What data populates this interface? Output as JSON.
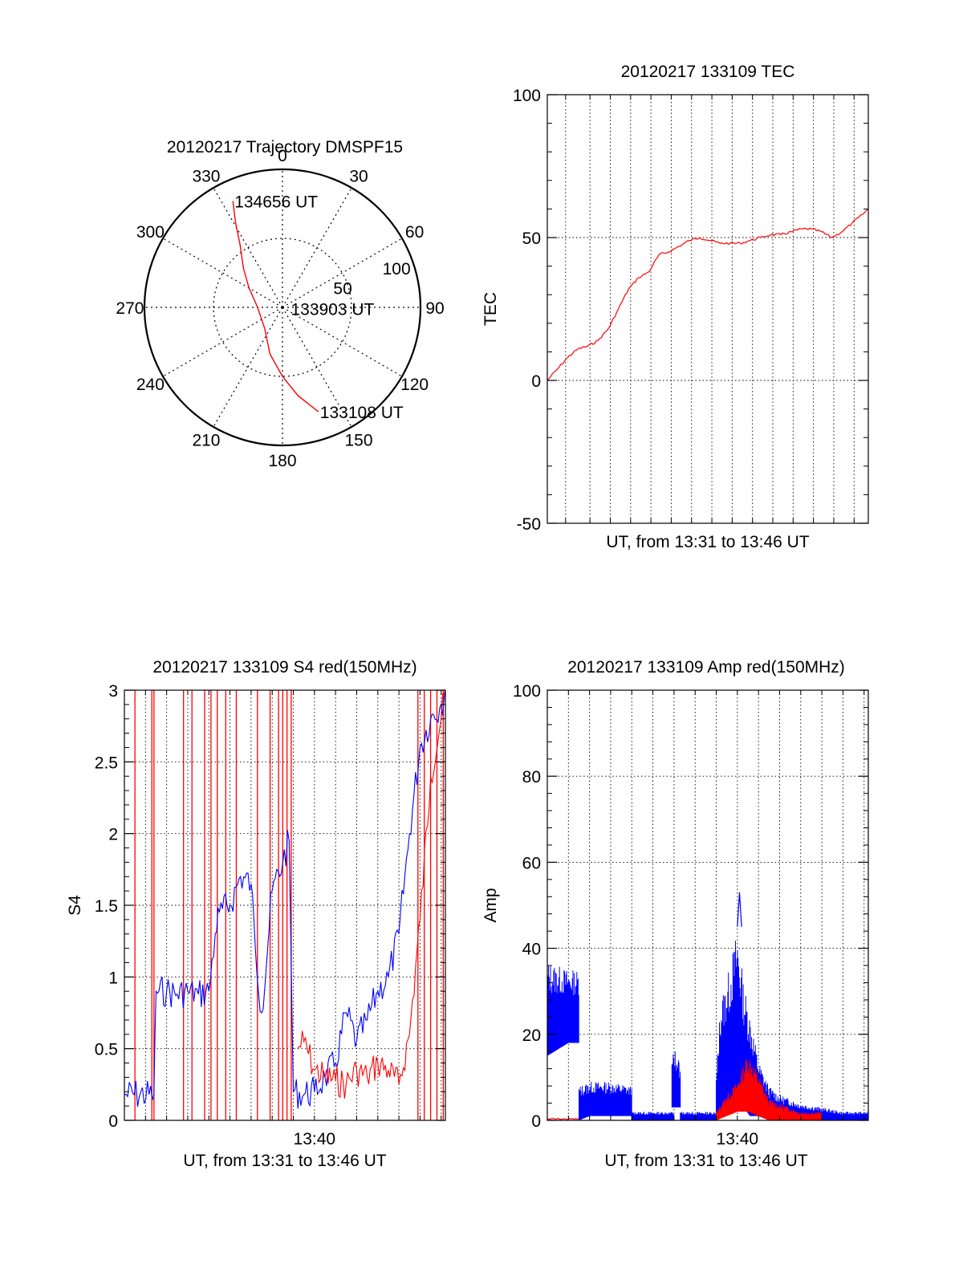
{
  "colors": {
    "red": "#ff0000",
    "blue": "#0000ff",
    "axis": "#000000",
    "grid": "#000000"
  },
  "chart_data": [
    {
      "id": "trajectory",
      "type": "polar",
      "title": "20120217 Trajectory DMSPF15",
      "angle_ticks": [
        0,
        30,
        60,
        90,
        120,
        150,
        180,
        210,
        240,
        270,
        300,
        330
      ],
      "angle_tick_labels": [
        "0",
        "30",
        "60",
        "90",
        "120",
        "150",
        "180",
        "210",
        "240",
        "270",
        "300",
        "330"
      ],
      "radial_ticks": [
        50,
        100
      ],
      "radial_tick_labels": [
        "50",
        "100"
      ],
      "rmax": 100,
      "grid": true,
      "series": [
        {
          "color": "red",
          "points": [
            {
              "az": 335,
              "r": 85
            },
            {
              "az": 331,
              "r": 70
            },
            {
              "az": 326,
              "r": 55
            },
            {
              "az": 315,
              "r": 40
            },
            {
              "az": 300,
              "r": 28
            },
            {
              "az": 270,
              "r": 18
            },
            {
              "az": 220,
              "r": 20
            },
            {
              "az": 195,
              "r": 35
            },
            {
              "az": 180,
              "r": 50
            },
            {
              "az": 170,
              "r": 65
            },
            {
              "az": 161,
              "r": 80
            }
          ]
        }
      ],
      "annotations": [
        {
          "text": "134656 UT",
          "az": 335,
          "r": 85
        },
        {
          "text": "133903 UT",
          "az": 100,
          "r": 5
        },
        {
          "text": "133108 UT",
          "az": 161,
          "r": 80
        }
      ]
    },
    {
      "id": "tec",
      "type": "line",
      "title": "20120217 133109 TEC",
      "xlabel": "UT, from 13:31 to 13:46 UT",
      "ylabel": "TEC",
      "xlim": [
        0,
        15.8
      ],
      "ylim": [
        -50,
        100
      ],
      "yticks": [
        -50,
        0,
        50,
        100
      ],
      "ytick_labels": [
        "-50",
        "0",
        "50",
        "100"
      ],
      "xgrid": [
        0.9,
        2.1,
        3.1,
        4.1,
        5.1,
        6.1,
        7.1,
        8.1,
        9.1,
        10.1,
        11.1,
        12.1,
        13.1,
        14.1,
        15.1
      ],
      "grid": true,
      "series": [
        {
          "color": "red",
          "x": [
            0,
            0.5,
            1.0,
            1.5,
            2.0,
            2.5,
            3.0,
            3.5,
            4.0,
            4.5,
            5.0,
            5.5,
            6.0,
            6.5,
            7.0,
            7.5,
            8.0,
            8.5,
            9.0,
            9.5,
            10.0,
            10.5,
            11.0,
            11.5,
            12.0,
            12.5,
            13.0,
            13.5,
            14.0,
            14.5,
            15.0,
            15.5,
            15.8
          ],
          "y": [
            0,
            4,
            8,
            11,
            12,
            14,
            18,
            25,
            32,
            36,
            38,
            44,
            45,
            47,
            49,
            50,
            49,
            48,
            48,
            48,
            49,
            50,
            51,
            51,
            52,
            53,
            53,
            52,
            50,
            52,
            55,
            58,
            60
          ]
        }
      ]
    },
    {
      "id": "s4",
      "type": "line",
      "title": "20120217 133109 S4 red(150MHz)",
      "xlabel": "UT, from 13:31 to 13:46 UT",
      "ylabel": "S4",
      "xlim": [
        0,
        15.2
      ],
      "ylim": [
        0,
        3
      ],
      "yticks": [
        0,
        0.5,
        1,
        1.5,
        2,
        2.5,
        3
      ],
      "ytick_labels": [
        "0",
        "0.5",
        "1",
        "1.5",
        "2",
        "2.5",
        "3"
      ],
      "xticks": [
        9.0
      ],
      "xtick_labels": [
        "13:40"
      ],
      "xgrid": [
        1.0,
        2.0,
        3.0,
        4.0,
        5.0,
        6.0,
        7.0,
        8.0,
        9.0,
        10.0,
        11.0,
        12.0,
        13.0,
        14.0,
        15.0
      ],
      "grid": true,
      "series": [
        {
          "color": "blue",
          "x": [
            0,
            1.4,
            1.5,
            2.0,
            2.5,
            3.0,
            3.5,
            4.0,
            4.3,
            4.5,
            5.0,
            5.5,
            6.0,
            6.2,
            6.5,
            7.0,
            7.5,
            7.8,
            8.0,
            8.5,
            9.0,
            9.5,
            10.0,
            10.5,
            11.0,
            11.5,
            12.0,
            12.5,
            13.0,
            13.5,
            14.0,
            14.5,
            15.0,
            15.2
          ],
          "y": [
            0.18,
            0.18,
            0.9,
            0.9,
            0.88,
            0.9,
            0.88,
            0.9,
            1.3,
            1.45,
            1.5,
            1.7,
            1.65,
            1.2,
            0.75,
            1.6,
            1.8,
            1.95,
            0.2,
            0.18,
            0.2,
            0.3,
            0.4,
            0.75,
            0.55,
            0.7,
            0.9,
            1.0,
            1.3,
            2.0,
            2.6,
            2.8,
            2.9,
            3.0
          ]
        },
        {
          "color": "red",
          "x": [
            8.2,
            8.5,
            9.0,
            9.5,
            10.0,
            10.5,
            11.0,
            11.5,
            12.0,
            12.5,
            13.0,
            13.5,
            14.0,
            14.5,
            15.0,
            15.2
          ],
          "y": [
            0.5,
            0.55,
            0.35,
            0.3,
            0.28,
            0.25,
            0.35,
            0.3,
            0.4,
            0.35,
            0.25,
            0.6,
            1.4,
            2.4,
            2.8,
            3.0
          ]
        }
      ],
      "spikes": {
        "color": "red",
        "x": [
          0.5,
          1.3,
          1.4,
          2.8,
          3.2,
          3.8,
          4.1,
          4.4,
          4.8,
          5.3,
          6.3,
          6.9,
          7.3,
          7.5,
          7.7,
          7.9,
          13.9,
          14.2,
          14.5,
          14.8,
          15.1
        ],
        "top": 3
      }
    },
    {
      "id": "amp",
      "type": "line",
      "title": "20120217 133109 Amp red(150MHz)",
      "xlabel": "UT, from 13:31 to 13:46 UT",
      "ylabel": "Amp",
      "xlim": [
        0,
        15.2
      ],
      "ylim": [
        0,
        100
      ],
      "yticks": [
        0,
        20,
        40,
        60,
        80,
        100
      ],
      "ytick_labels": [
        "0",
        "20",
        "40",
        "60",
        "80",
        "100"
      ],
      "xticks": [
        9.0
      ],
      "xtick_labels": [
        "13:40"
      ],
      "xgrid": [
        1.0,
        2.0,
        3.0,
        4.0,
        5.0,
        6.0,
        7.0,
        8.0,
        9.0,
        10.0,
        11.0,
        12.0,
        13.0,
        14.0,
        15.0
      ],
      "grid": true,
      "bands": [
        {
          "color": "blue",
          "x": [
            0,
            1.0,
            1.5
          ],
          "low": [
            15,
            18,
            18
          ],
          "high": [
            37,
            35,
            35
          ]
        },
        {
          "color": "blue",
          "x": [
            1.5,
            2.0,
            3.0,
            4.0
          ],
          "low": [
            0,
            1,
            1,
            1
          ],
          "high": [
            8,
            9,
            9,
            8
          ]
        },
        {
          "color": "blue",
          "x": [
            4.0,
            5.0,
            6.0
          ],
          "low": [
            0,
            0,
            0
          ],
          "high": [
            2,
            2,
            2
          ]
        },
        {
          "color": "blue",
          "x": [
            5.9,
            6.0,
            6.2,
            6.3
          ],
          "low": [
            3,
            3,
            3,
            3
          ],
          "high": [
            14,
            17,
            15,
            12
          ]
        },
        {
          "color": "blue",
          "x": [
            6.3,
            7.0,
            8.0
          ],
          "low": [
            0,
            0,
            0
          ],
          "high": [
            2,
            2,
            2
          ]
        },
        {
          "color": "blue",
          "x": [
            8.0,
            8.2,
            8.6,
            9.0,
            9.3,
            9.6,
            10.0,
            10.5,
            11.0,
            12.0,
            13.0,
            14.0,
            15.2
          ],
          "low": [
            1,
            2,
            4,
            5,
            3,
            1,
            1,
            0,
            0,
            0,
            0,
            0,
            0
          ],
          "high": [
            10,
            28,
            35,
            45,
            32,
            25,
            14,
            8,
            6,
            4,
            3,
            2,
            2
          ]
        },
        {
          "color": "red",
          "x": [
            8.0,
            8.5,
            9.0,
            9.5,
            10.0,
            10.5,
            11.0,
            12.0,
            13.0
          ],
          "low": [
            0,
            1,
            2,
            2,
            1,
            0,
            0,
            0,
            0
          ],
          "high": [
            2,
            6,
            9,
            16,
            11,
            5,
            4,
            2,
            2
          ]
        }
      ],
      "series": [
        {
          "color": "red",
          "x": [
            0,
            1.5
          ],
          "y": [
            0.3,
            0.3
          ]
        },
        {
          "color": "blue",
          "x": [
            9.0,
            9.1,
            9.2
          ],
          "y": [
            45,
            53,
            45
          ]
        }
      ]
    }
  ]
}
